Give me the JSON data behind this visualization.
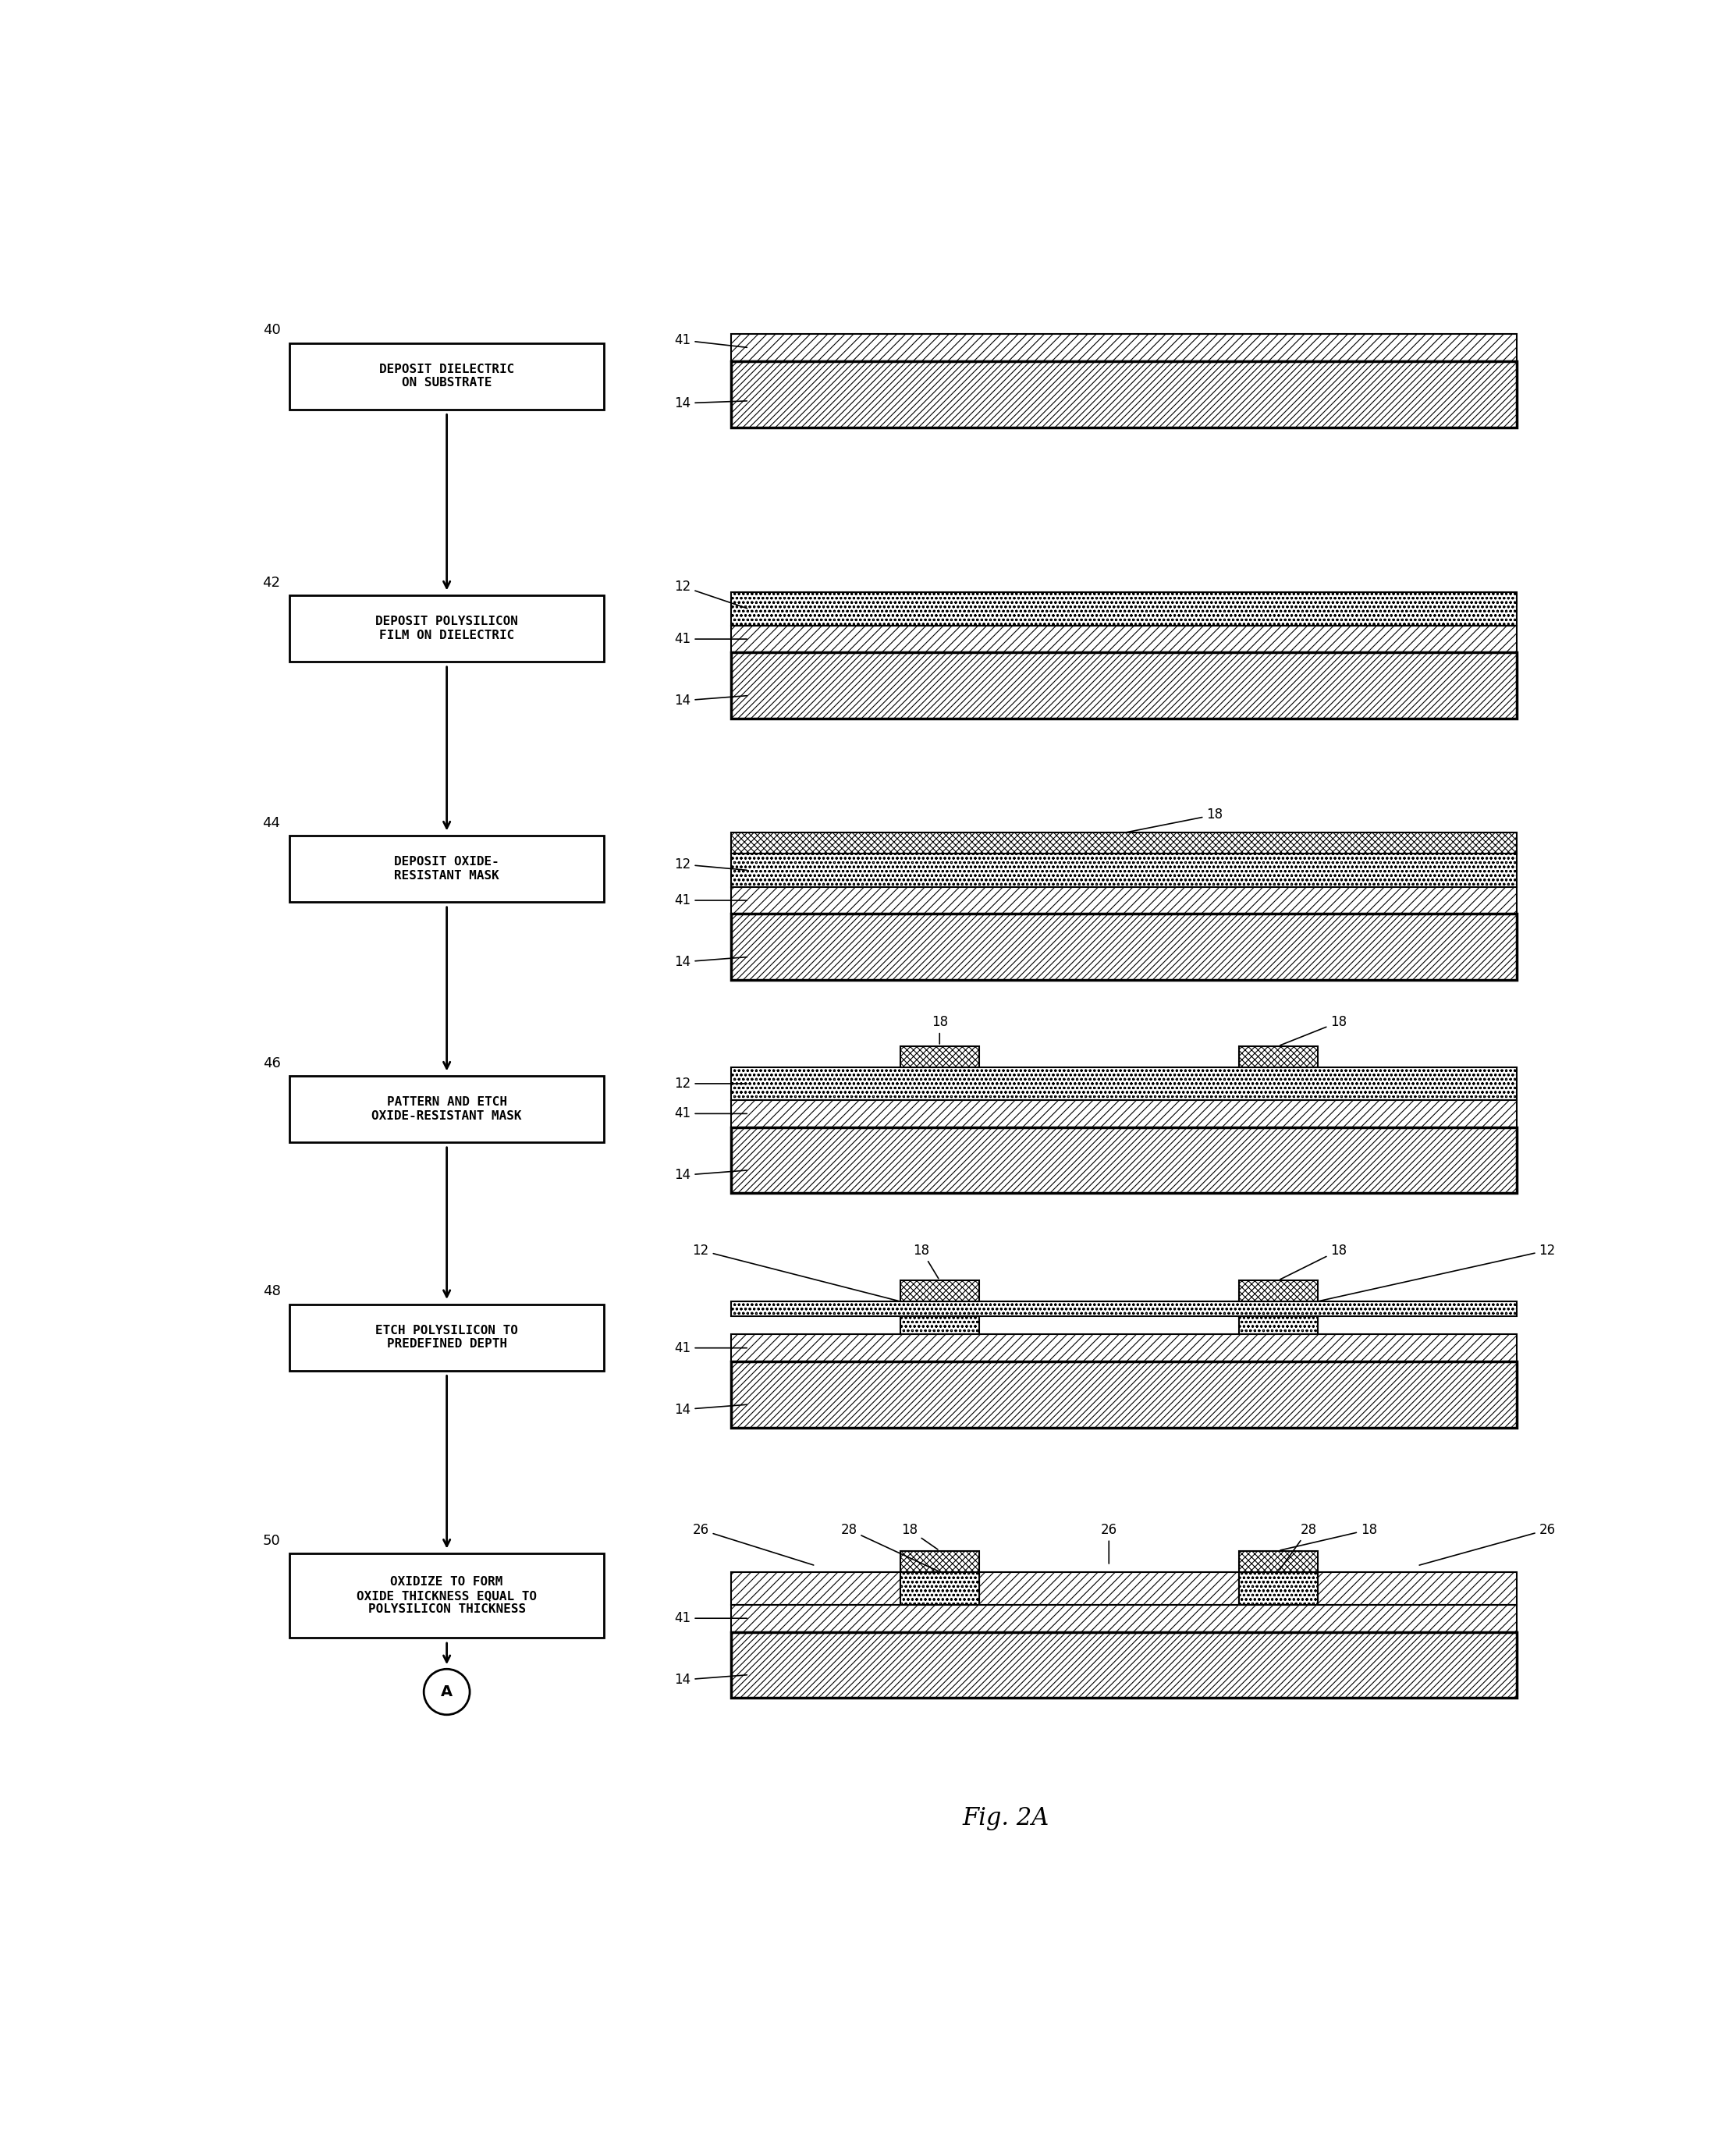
{
  "background_color": "#ffffff",
  "fig_label": "Fig. 2A",
  "flow_steps": [
    {
      "num": "40",
      "text": "DEPOSIT DIELECTRIC\nON SUBSTRATE"
    },
    {
      "num": "42",
      "text": "DEPOSIT POLYSILICON\nFILM ON DIELECTRIC"
    },
    {
      "num": "44",
      "text": "DEPOSIT OXIDE-\nRESISTANT MASK"
    },
    {
      "num": "46",
      "text": "PATTERN AND ETCH\nOXIDE-RESISTANT MASK"
    },
    {
      "num": "48",
      "text": "ETCH POLYSILICON TO\nPREDEFINED DEPTH"
    },
    {
      "num": "50",
      "text": "OXIDIZE TO FORM\nOXIDE THICKNESS EQUAL TO\nPOLYSILICON THICKNESS"
    }
  ],
  "connector_label": "A",
  "diagram_labels": {
    "step1": {
      "layers": [
        {
          "id": "41",
          "pos": "top"
        },
        {
          "id": "14",
          "pos": "bottom"
        }
      ]
    },
    "step2": {
      "layers": [
        {
          "id": "12",
          "pos": "top"
        },
        {
          "id": "41",
          "pos": "mid"
        },
        {
          "id": "14",
          "pos": "bottom"
        }
      ]
    },
    "step3": {
      "layers": [
        {
          "id": "18",
          "pos": "top"
        },
        {
          "id": "12",
          "pos": "mid"
        },
        {
          "id": "41",
          "pos": "mid2"
        },
        {
          "id": "14",
          "pos": "bottom"
        }
      ]
    },
    "step4": {
      "layers": [
        {
          "id": "18",
          "pos": "top1"
        },
        {
          "id": "18",
          "pos": "top2"
        },
        {
          "id": "12",
          "pos": "mid"
        },
        {
          "id": "41",
          "pos": "mid2"
        },
        {
          "id": "14",
          "pos": "bottom"
        }
      ]
    },
    "step5": {
      "layers": [
        {
          "id": "18",
          "pos": "top1"
        },
        {
          "id": "18",
          "pos": "top2"
        },
        {
          "id": "12",
          "pos": "left"
        },
        {
          "id": "12",
          "pos": "right"
        },
        {
          "id": "41",
          "pos": "mid2"
        },
        {
          "id": "14",
          "pos": "bottom"
        }
      ]
    },
    "step6": {
      "layers": [
        {
          "id": "28",
          "pos": "top1"
        },
        {
          "id": "18",
          "pos": "top1b"
        },
        {
          "id": "28",
          "pos": "top2"
        },
        {
          "id": "18",
          "pos": "top2b"
        },
        {
          "id": "26",
          "pos": "left"
        },
        {
          "id": "26",
          "pos": "mid"
        },
        {
          "id": "26",
          "pos": "right"
        },
        {
          "id": "41",
          "pos": "mid2"
        },
        {
          "id": "14",
          "pos": "bottom"
        }
      ]
    }
  },
  "colors": {
    "white": "#ffffff",
    "black": "#000000",
    "light_gray": "#e8e8e8"
  }
}
